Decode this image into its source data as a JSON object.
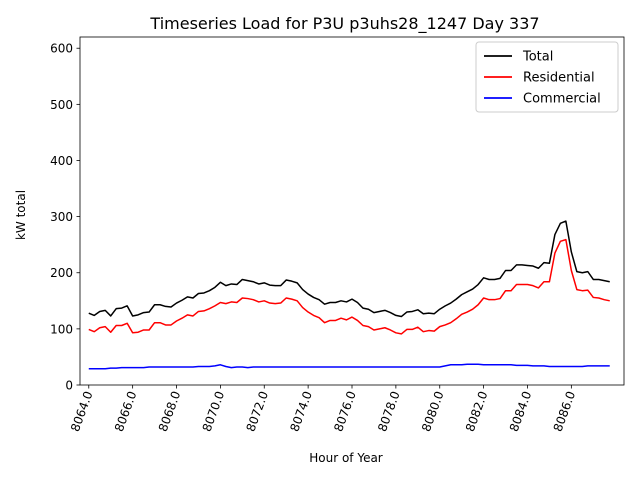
{
  "chart_data": {
    "type": "line",
    "title": "Timeseries Load for P3U p3uhs28_1247  Day 337",
    "xlabel": "Hour of Year",
    "ylabel": "kW total",
    "xlim": [
      8063.6,
      8088.4
    ],
    "ylim": [
      0,
      620
    ],
    "xticks": [
      8064,
      8066,
      8068,
      8070,
      8072,
      8074,
      8076,
      8078,
      8080,
      8082,
      8084,
      8086
    ],
    "xtick_labels": [
      "8064.0",
      "8066.0",
      "8068.0",
      "8070.0",
      "8072.0",
      "8074.0",
      "8076.0",
      "8078.0",
      "8080.0",
      "8082.0",
      "8084.0",
      "8086.0"
    ],
    "yticks": [
      0,
      100,
      200,
      300,
      400,
      500,
      600
    ],
    "ytick_labels": [
      "0",
      "100",
      "200",
      "300",
      "400",
      "500",
      "600"
    ],
    "grid": false,
    "legend_position": "top-right",
    "x_start": 8064.0,
    "x_step": 0.25,
    "series": [
      {
        "name": "Total",
        "color": "#000000",
        "values": [
          128,
          124,
          131,
          133,
          123,
          136,
          137,
          141,
          123,
          125,
          129,
          130,
          143,
          143,
          140,
          139,
          146,
          151,
          157,
          155,
          163,
          164,
          168,
          174,
          183,
          177,
          180,
          179,
          188,
          186,
          184,
          180,
          182,
          178,
          177,
          177,
          187,
          185,
          182,
          170,
          162,
          156,
          152,
          144,
          147,
          147,
          150,
          148,
          153,
          147,
          137,
          135,
          129,
          131,
          133,
          129,
          124,
          122,
          130,
          131,
          134,
          127,
          128,
          127,
          135,
          141,
          146,
          153,
          161,
          166,
          171,
          179,
          191,
          188,
          188,
          190,
          204,
          204,
          214,
          214,
          213,
          212,
          208,
          218,
          217,
          268,
          288,
          292,
          237,
          202,
          200,
          202,
          188,
          188,
          186,
          184
        ]
      },
      {
        "name": "Residential",
        "color": "#ff0000",
        "values": [
          99,
          95,
          102,
          104,
          94,
          106,
          106,
          110,
          93,
          94,
          98,
          98,
          111,
          111,
          107,
          107,
          114,
          119,
          125,
          123,
          131,
          132,
          136,
          141,
          147,
          145,
          148,
          147,
          155,
          154,
          152,
          148,
          150,
          146,
          145,
          146,
          155,
          153,
          150,
          138,
          130,
          124,
          120,
          111,
          115,
          115,
          119,
          116,
          121,
          115,
          106,
          104,
          98,
          100,
          102,
          98,
          93,
          91,
          99,
          99,
          103,
          95,
          97,
          96,
          104,
          107,
          111,
          118,
          126,
          130,
          135,
          143,
          155,
          152,
          152,
          154,
          168,
          168,
          179,
          179,
          179,
          177,
          173,
          184,
          184,
          235,
          256,
          259,
          204,
          170,
          168,
          169,
          156,
          155,
          152,
          150
        ]
      },
      {
        "name": "Commercial",
        "color": "#0000ff",
        "values": [
          29,
          29,
          29,
          29,
          30,
          30,
          31,
          31,
          31,
          31,
          31,
          32,
          32,
          32,
          32,
          32,
          32,
          32,
          32,
          32,
          33,
          33,
          33,
          34,
          36,
          33,
          31,
          32,
          32,
          31,
          32,
          32,
          32,
          32,
          32,
          32,
          32,
          32,
          32,
          32,
          32,
          32,
          32,
          32,
          32,
          32,
          32,
          32,
          32,
          32,
          32,
          32,
          32,
          32,
          32,
          32,
          32,
          32,
          32,
          32,
          32,
          32,
          32,
          32,
          32,
          34,
          36,
          36,
          36,
          37,
          37,
          37,
          36,
          36,
          36,
          36,
          36,
          36,
          35,
          35,
          35,
          34,
          34,
          34,
          33,
          33,
          33,
          33,
          33,
          33,
          33,
          34,
          34,
          34,
          34,
          34
        ]
      }
    ]
  }
}
